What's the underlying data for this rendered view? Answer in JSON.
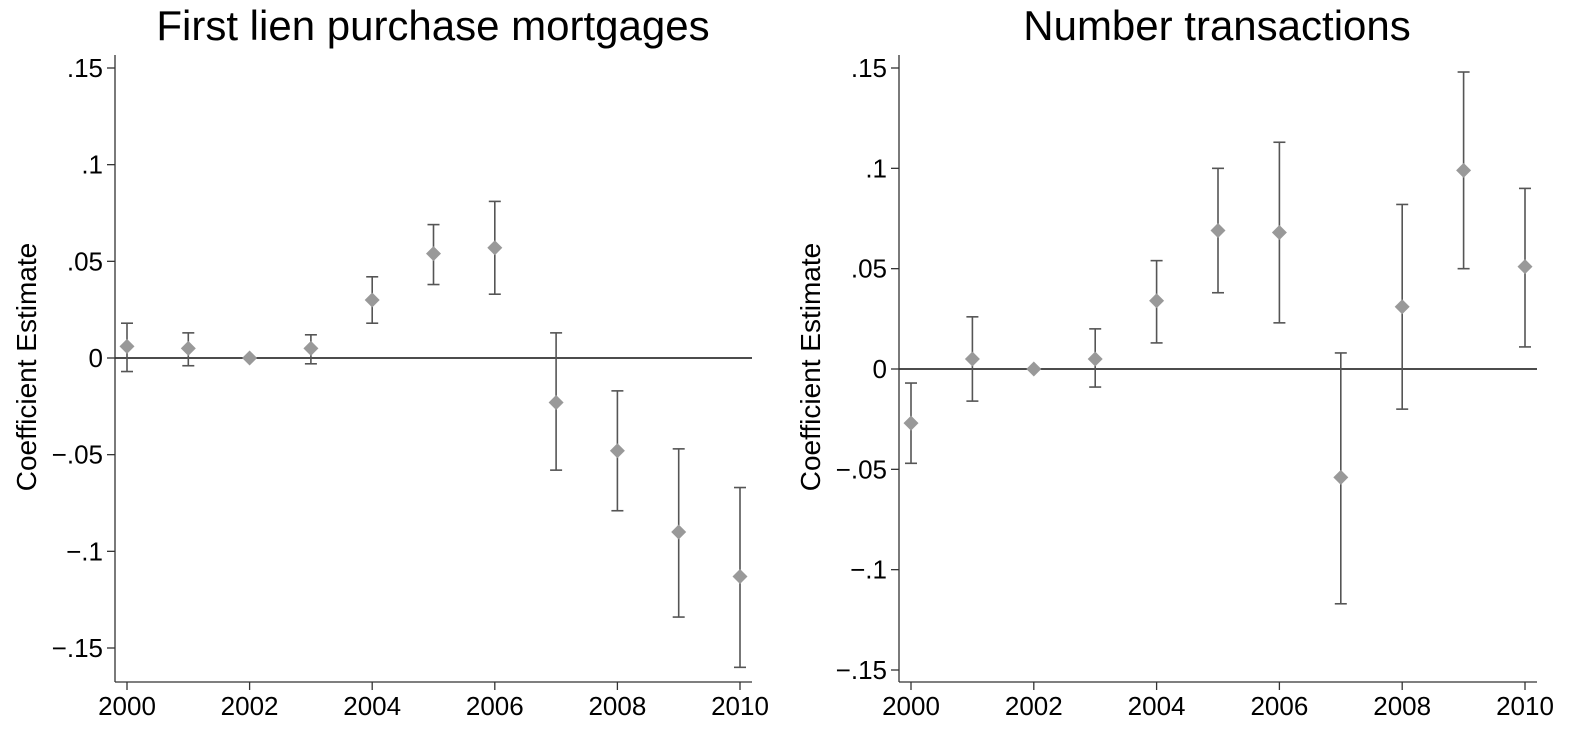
{
  "colors": {
    "marker": "#999999",
    "ci_line": "#555555",
    "axis": "#333333",
    "zero_line": "#333333",
    "text": "#000000"
  },
  "chart_data": [
    {
      "type": "scatter",
      "title": "First lien purchase mortgages",
      "xlabel": "",
      "ylabel": "Coefficient Estimate",
      "xlim": [
        2000,
        2010
      ],
      "ylim": [
        -0.15,
        0.15
      ],
      "x_ticks": [
        2000,
        2002,
        2004,
        2006,
        2008,
        2010
      ],
      "x_tick_labels": [
        "2000",
        "2002",
        "2004",
        "2006",
        "2008",
        "2010"
      ],
      "y_ticks": [
        0.15,
        0.1,
        0.05,
        0,
        -0.05,
        -0.1,
        -0.15
      ],
      "y_tick_labels": [
        ".15",
        ".1",
        ".05",
        "0",
        "−.05",
        "−.1",
        "−.15"
      ],
      "reference_line_y": 0,
      "grid": false,
      "marker": "diamond",
      "x": [
        2000,
        2001,
        2002,
        2003,
        2004,
        2005,
        2006,
        2007,
        2008,
        2009,
        2010
      ],
      "y": [
        0.006,
        0.005,
        0.0,
        0.005,
        0.03,
        0.054,
        0.057,
        -0.023,
        -0.048,
        -0.09,
        -0.113
      ],
      "ci_low": [
        -0.007,
        -0.004,
        0.0,
        -0.003,
        0.018,
        0.038,
        0.033,
        -0.058,
        -0.079,
        -0.134,
        -0.16
      ],
      "ci_high": [
        0.018,
        0.013,
        0.0,
        0.012,
        0.042,
        0.069,
        0.081,
        0.013,
        -0.017,
        -0.047,
        -0.067
      ]
    },
    {
      "type": "scatter",
      "title": "Number transactions",
      "xlabel": "",
      "ylabel": "Coefficient Estimate",
      "xlim": [
        2000,
        2010
      ],
      "ylim": [
        -0.15,
        0.15
      ],
      "x_ticks": [
        2000,
        2002,
        2004,
        2006,
        2008,
        2010
      ],
      "x_tick_labels": [
        "2000",
        "2002",
        "2004",
        "2006",
        "2008",
        "2010"
      ],
      "y_ticks": [
        0.15,
        0.1,
        0.05,
        0,
        -0.05,
        -0.1,
        -0.15
      ],
      "y_tick_labels": [
        ".15",
        ".1",
        ".05",
        "0",
        "−.05",
        "−.1",
        "−.15"
      ],
      "reference_line_y": 0,
      "grid": false,
      "marker": "diamond",
      "x": [
        2000,
        2001,
        2002,
        2003,
        2004,
        2005,
        2006,
        2007,
        2008,
        2009,
        2010
      ],
      "y": [
        -0.027,
        0.005,
        0.0,
        0.005,
        0.034,
        0.069,
        0.068,
        -0.054,
        0.031,
        0.099,
        0.051
      ],
      "ci_low": [
        -0.047,
        -0.016,
        0.0,
        -0.009,
        0.013,
        0.038,
        0.023,
        -0.117,
        -0.02,
        0.05,
        0.011
      ],
      "ci_high": [
        -0.007,
        0.026,
        0.0,
        0.02,
        0.054,
        0.1,
        0.113,
        0.008,
        0.082,
        0.148,
        0.09
      ]
    }
  ]
}
